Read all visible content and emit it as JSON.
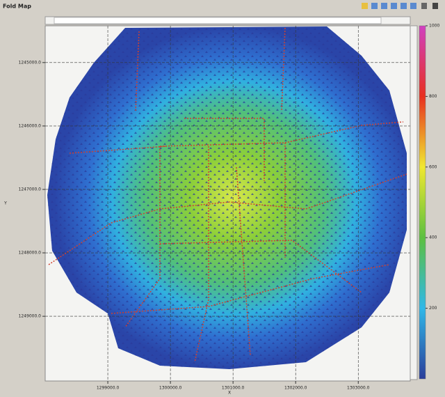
{
  "window": {
    "title": "Fold Map"
  },
  "chart_data": {
    "type": "heatmap",
    "xlabel": "X",
    "ylabel": "Y",
    "xlim": [
      1298000,
      1303830
    ],
    "ylim": [
      1244420,
      1250020
    ],
    "xticks": [
      {
        "value": 1299000,
        "label": "1299000.0"
      },
      {
        "value": 1300000,
        "label": "1300000.0"
      },
      {
        "value": 1301000,
        "label": "1301000.0"
      },
      {
        "value": 1302000,
        "label": "1302000.0"
      },
      {
        "value": 1303000,
        "label": "1303000.0"
      }
    ],
    "yticks": [
      {
        "value": 1245000,
        "label": "1245000.0"
      },
      {
        "value": 1246000,
        "label": "1246000.0"
      },
      {
        "value": 1247000,
        "label": "1247000.0"
      },
      {
        "value": 1248000,
        "label": "1248000.0"
      },
      {
        "value": 1249000,
        "label": "1249000.0"
      }
    ],
    "grid": true,
    "colorbar": {
      "lim": [
        0,
        1000
      ],
      "ticks": [
        200,
        400,
        600,
        800,
        1000
      ]
    }
  }
}
